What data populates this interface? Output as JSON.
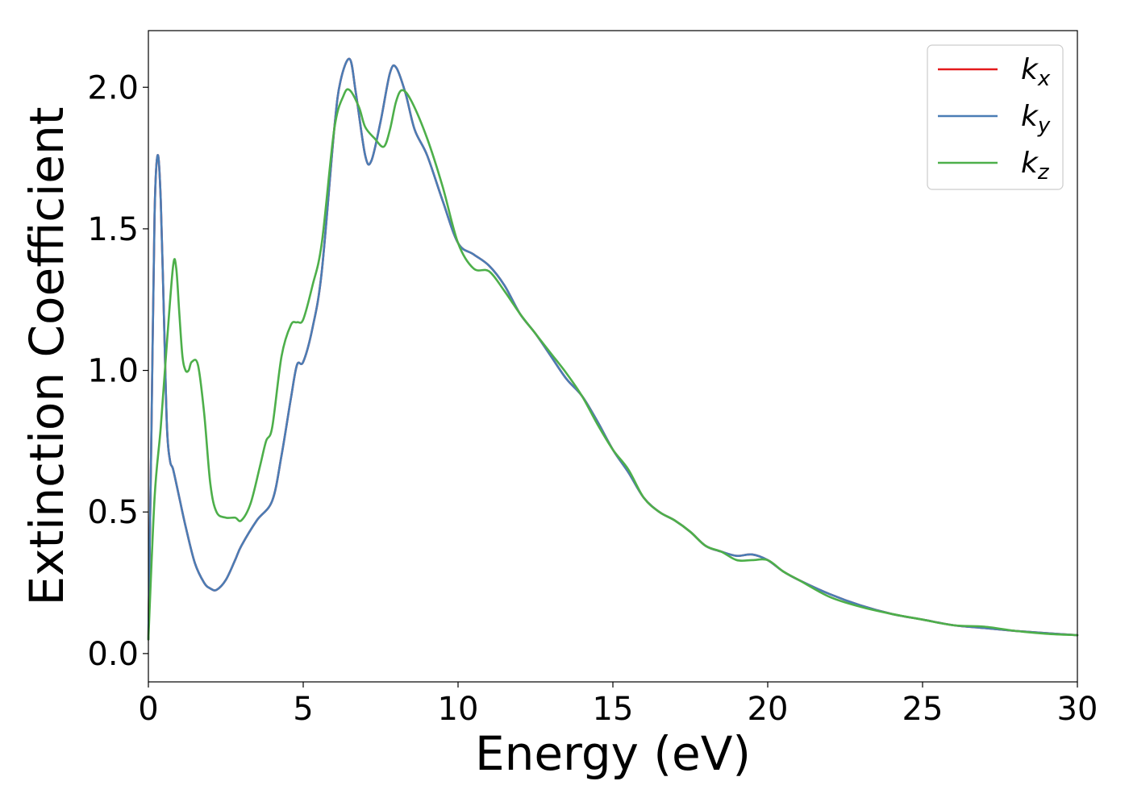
{
  "chart_data": {
    "type": "line",
    "title": "",
    "xlabel": "Energy (eV)",
    "ylabel": "Extinction Coefficient",
    "xlim": [
      0,
      30
    ],
    "ylim": [
      -0.1,
      2.2
    ],
    "xticks": [
      0,
      5,
      10,
      15,
      20,
      25,
      30
    ],
    "xtick_labels": [
      "0",
      "5",
      "10",
      "15",
      "20",
      "25",
      "30"
    ],
    "yticks": [
      0.0,
      0.5,
      1.0,
      1.5,
      2.0
    ],
    "ytick_labels": [
      "0.0",
      "0.5",
      "1.0",
      "1.5",
      "2.0"
    ],
    "grid": false,
    "legend_position": "top-right",
    "series": [
      {
        "name": "k",
        "subscript": "x",
        "color": "#e41a1c",
        "x": [
          0,
          0.1,
          0.2,
          0.3,
          0.4,
          0.5,
          0.6,
          0.7,
          0.8,
          1.0,
          1.2,
          1.5,
          1.8,
          2.0,
          2.2,
          2.5,
          2.8,
          3.0,
          3.5,
          4.0,
          4.3,
          4.6,
          4.8,
          5.0,
          5.3,
          5.6,
          6.0,
          6.2,
          6.5,
          6.7,
          7.0,
          7.2,
          7.5,
          7.8,
          8.0,
          8.3,
          8.6,
          9.0,
          9.5,
          10.0,
          10.5,
          11.0,
          11.5,
          12.0,
          12.5,
          13.0,
          13.5,
          14.0,
          14.5,
          15.0,
          15.5,
          16.0,
          16.5,
          17.0,
          17.5,
          18.0,
          18.5,
          19.0,
          19.5,
          20.0,
          20.5,
          21.0,
          22.0,
          23.0,
          24.0,
          25.0,
          26.0,
          27.0,
          28.0,
          29.0,
          30.0
        ],
        "values": [
          0.05,
          0.8,
          1.55,
          1.76,
          1.6,
          1.2,
          0.8,
          0.68,
          0.65,
          0.55,
          0.45,
          0.32,
          0.25,
          0.23,
          0.225,
          0.26,
          0.33,
          0.38,
          0.47,
          0.54,
          0.7,
          0.9,
          1.02,
          1.03,
          1.15,
          1.35,
          1.85,
          2.02,
          2.1,
          1.98,
          1.76,
          1.74,
          1.88,
          2.05,
          2.07,
          1.98,
          1.85,
          1.76,
          1.6,
          1.45,
          1.41,
          1.37,
          1.3,
          1.2,
          1.13,
          1.05,
          0.97,
          0.91,
          0.82,
          0.72,
          0.64,
          0.55,
          0.5,
          0.47,
          0.43,
          0.38,
          0.36,
          0.345,
          0.35,
          0.33,
          0.29,
          0.26,
          0.21,
          0.17,
          0.14,
          0.12,
          0.1,
          0.09,
          0.08,
          0.072,
          0.065
        ]
      },
      {
        "name": "k",
        "subscript": "y",
        "color": "#4a7db5",
        "x": [
          0,
          0.1,
          0.2,
          0.3,
          0.4,
          0.5,
          0.6,
          0.7,
          0.8,
          1.0,
          1.2,
          1.5,
          1.8,
          2.0,
          2.2,
          2.5,
          2.8,
          3.0,
          3.5,
          4.0,
          4.3,
          4.6,
          4.8,
          5.0,
          5.3,
          5.6,
          6.0,
          6.2,
          6.5,
          6.7,
          7.0,
          7.2,
          7.5,
          7.8,
          8.0,
          8.3,
          8.6,
          9.0,
          9.5,
          10.0,
          10.5,
          11.0,
          11.5,
          12.0,
          12.5,
          13.0,
          13.5,
          14.0,
          14.5,
          15.0,
          15.5,
          16.0,
          16.5,
          17.0,
          17.5,
          18.0,
          18.5,
          19.0,
          19.5,
          20.0,
          20.5,
          21.0,
          22.0,
          23.0,
          24.0,
          25.0,
          26.0,
          27.0,
          28.0,
          29.0,
          30.0
        ],
        "values": [
          0.05,
          0.8,
          1.55,
          1.76,
          1.6,
          1.2,
          0.8,
          0.68,
          0.65,
          0.55,
          0.45,
          0.32,
          0.25,
          0.23,
          0.225,
          0.26,
          0.33,
          0.38,
          0.47,
          0.54,
          0.7,
          0.9,
          1.02,
          1.03,
          1.15,
          1.35,
          1.85,
          2.02,
          2.1,
          1.98,
          1.76,
          1.74,
          1.88,
          2.05,
          2.07,
          1.98,
          1.85,
          1.76,
          1.6,
          1.45,
          1.41,
          1.37,
          1.3,
          1.2,
          1.13,
          1.05,
          0.97,
          0.91,
          0.82,
          0.72,
          0.64,
          0.55,
          0.5,
          0.47,
          0.43,
          0.38,
          0.36,
          0.345,
          0.35,
          0.33,
          0.29,
          0.26,
          0.21,
          0.17,
          0.14,
          0.12,
          0.1,
          0.09,
          0.08,
          0.072,
          0.065
        ]
      },
      {
        "name": "k",
        "subscript": "z",
        "color": "#4daf4a",
        "x": [
          0,
          0.2,
          0.4,
          0.6,
          0.8,
          0.9,
          1.0,
          1.1,
          1.2,
          1.3,
          1.4,
          1.6,
          1.8,
          2.0,
          2.2,
          2.5,
          2.8,
          3.0,
          3.3,
          3.6,
          3.8,
          4.0,
          4.3,
          4.6,
          4.8,
          5.0,
          5.3,
          5.6,
          6.0,
          6.3,
          6.5,
          6.8,
          7.0,
          7.3,
          7.6,
          7.8,
          8.0,
          8.2,
          8.5,
          9.0,
          9.5,
          10.0,
          10.5,
          11.0,
          11.5,
          12.0,
          12.5,
          13.0,
          13.5,
          14.0,
          14.5,
          15.0,
          15.5,
          16.0,
          16.5,
          17.0,
          17.5,
          18.0,
          18.5,
          19.0,
          19.5,
          20.0,
          20.5,
          21.0,
          22.0,
          23.0,
          24.0,
          25.0,
          26.0,
          27.0,
          28.0,
          29.0,
          30.0
        ],
        "values": [
          0.05,
          0.55,
          0.8,
          1.1,
          1.37,
          1.36,
          1.2,
          1.05,
          1.0,
          1.0,
          1.03,
          1.02,
          0.85,
          0.6,
          0.5,
          0.48,
          0.48,
          0.47,
          0.53,
          0.66,
          0.75,
          0.8,
          1.05,
          1.16,
          1.17,
          1.18,
          1.3,
          1.45,
          1.85,
          1.97,
          1.99,
          1.93,
          1.86,
          1.82,
          1.79,
          1.85,
          1.95,
          1.99,
          1.95,
          1.82,
          1.65,
          1.45,
          1.36,
          1.35,
          1.28,
          1.2,
          1.13,
          1.06,
          0.99,
          0.91,
          0.81,
          0.72,
          0.65,
          0.55,
          0.5,
          0.47,
          0.43,
          0.38,
          0.36,
          0.33,
          0.33,
          0.33,
          0.29,
          0.26,
          0.2,
          0.165,
          0.14,
          0.12,
          0.1,
          0.095,
          0.08,
          0.07,
          0.065
        ]
      }
    ]
  }
}
